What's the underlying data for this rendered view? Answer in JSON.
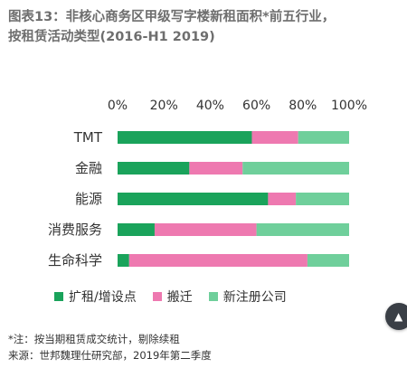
{
  "title": {
    "line1": "图表13：非核心商务区甲级写字楼新租面积*前五行业，",
    "line2": "按租赁活动类型(2016-H1 2019)"
  },
  "chart_data": {
    "type": "bar",
    "orientation": "horizontal",
    "stacked": true,
    "categories": [
      "TMT",
      "金融",
      "能源",
      "消费服务",
      "生命科学"
    ],
    "series": [
      {
        "name": "扩租/增设点",
        "color": "#1aa35b",
        "values": [
          58,
          31,
          65,
          16,
          5
        ]
      },
      {
        "name": "搬迁",
        "color": "#ee79b0",
        "values": [
          20,
          23,
          12,
          44,
          77
        ]
      },
      {
        "name": "新注册公司",
        "color": "#6fcf9b",
        "values": [
          22,
          46,
          23,
          40,
          18
        ]
      }
    ],
    "x_ticks": [
      "0%",
      "20%",
      "40%",
      "60%",
      "80%",
      "100%"
    ],
    "xlim": [
      0,
      100
    ],
    "legend_position": "bottom"
  },
  "notes": {
    "line1": "*注：按当期租赁成交统计，剔除续租",
    "line2": "来源：世邦魏理仕研究部，2019年第二季度"
  },
  "scroll_button_icon": "chevron-up-icon"
}
